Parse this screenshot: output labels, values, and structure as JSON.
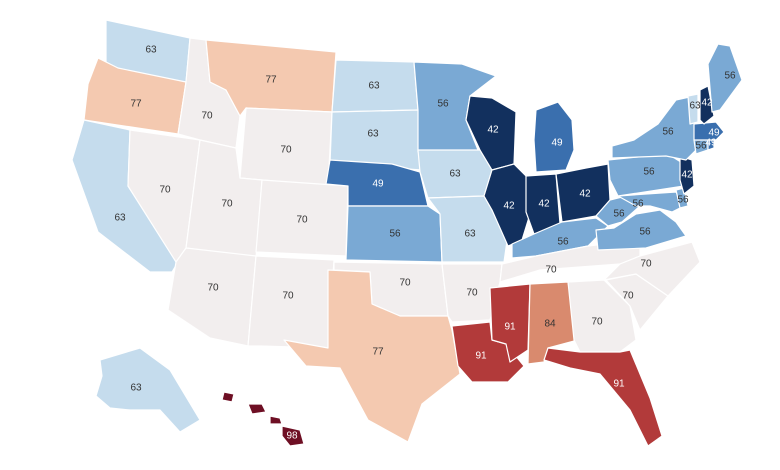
{
  "colors": {
    "v42": "#12305e",
    "v49": "#3a6fae",
    "v56": "#7aa9d4",
    "v63": "#c5dced",
    "v70": "#f2eeee",
    "v77": "#f4c9b0",
    "v84": "#d98a6e",
    "v91": "#b23a3a",
    "v98": "#6e0f24"
  },
  "states": [
    {
      "name": "Washington",
      "value": 63
    },
    {
      "name": "Oregon",
      "value": 77
    },
    {
      "name": "California",
      "value": 63
    },
    {
      "name": "Nevada",
      "value": 70
    },
    {
      "name": "Idaho",
      "value": 70
    },
    {
      "name": "Montana",
      "value": 77
    },
    {
      "name": "Wyoming",
      "value": 70
    },
    {
      "name": "Utah",
      "value": 70
    },
    {
      "name": "Colorado",
      "value": 70
    },
    {
      "name": "Arizona",
      "value": 70
    },
    {
      "name": "New Mexico",
      "value": 70
    },
    {
      "name": "North Dakota",
      "value": 63
    },
    {
      "name": "South Dakota",
      "value": 63
    },
    {
      "name": "Nebraska",
      "value": 49
    },
    {
      "name": "Kansas",
      "value": 56
    },
    {
      "name": "Oklahoma",
      "value": 70
    },
    {
      "name": "Texas",
      "value": 77
    },
    {
      "name": "Minnesota",
      "value": 56
    },
    {
      "name": "Iowa",
      "value": 63
    },
    {
      "name": "Missouri",
      "value": 63
    },
    {
      "name": "Arkansas",
      "value": 70
    },
    {
      "name": "Louisiana",
      "value": 91
    },
    {
      "name": "Wisconsin",
      "value": 42
    },
    {
      "name": "Illinois",
      "value": 42
    },
    {
      "name": "Michigan",
      "value": 49
    },
    {
      "name": "Indiana",
      "value": 42
    },
    {
      "name": "Ohio",
      "value": 42
    },
    {
      "name": "Kentucky",
      "value": 56
    },
    {
      "name": "Tennessee",
      "value": 70
    },
    {
      "name": "Mississippi",
      "value": 91
    },
    {
      "name": "Alabama",
      "value": 84
    },
    {
      "name": "Georgia",
      "value": 70
    },
    {
      "name": "Florida",
      "value": 91
    },
    {
      "name": "South Carolina",
      "value": 70
    },
    {
      "name": "North Carolina",
      "value": 70
    },
    {
      "name": "Virginia",
      "value": 56
    },
    {
      "name": "West Virginia",
      "value": 56
    },
    {
      "name": "Maryland",
      "value": 56
    },
    {
      "name": "Delaware",
      "value": 56
    },
    {
      "name": "Pennsylvania",
      "value": 56
    },
    {
      "name": "New Jersey",
      "value": 42
    },
    {
      "name": "New York",
      "value": 56
    },
    {
      "name": "Connecticut",
      "value": 56
    },
    {
      "name": "Rhode Island",
      "value": 49
    },
    {
      "name": "Massachusetts",
      "value": 49
    },
    {
      "name": "Vermont",
      "value": 63
    },
    {
      "name": "New Hampshire",
      "value": 42
    },
    {
      "name": "Maine",
      "value": 56
    },
    {
      "name": "Alaska",
      "value": 63
    },
    {
      "name": "Hawaii",
      "value": 98
    }
  ]
}
